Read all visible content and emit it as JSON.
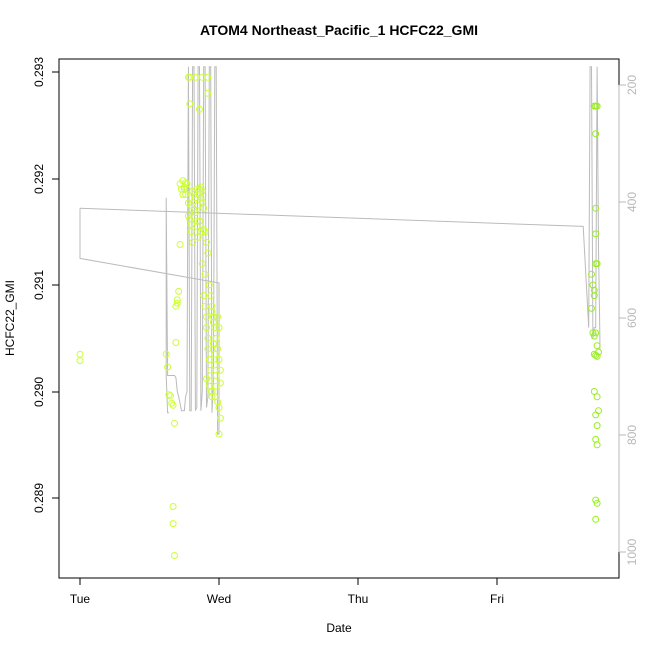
{
  "chart_data": {
    "type": "scatter",
    "title": "ATOM4 Northeast_Pacific_1 HCFC22_GMI",
    "xlabel": "Date",
    "ylabel": "HCFC22_GMI",
    "x_axis": {
      "range_days": [
        -0.02,
        3.8
      ],
      "ticks": [
        {
          "pos": 0,
          "label": "Tue"
        },
        {
          "pos": 1,
          "label": "Wed"
        },
        {
          "pos": 2,
          "label": "Thu"
        },
        {
          "pos": 3,
          "label": "Fri"
        }
      ]
    },
    "y_axis": {
      "ylim": [
        0.28843,
        0.29305
      ],
      "ticks": [
        "0.289",
        "0.290",
        "0.291",
        "0.292",
        "0.293"
      ]
    },
    "y2_axis": {
      "note": "pressure axis (reversed)",
      "ylim": [
        1030,
        175
      ],
      "ticks": [
        "200",
        "400",
        "600",
        "800",
        "1000"
      ],
      "color": "#b8b8b8"
    },
    "colors": {
      "points_early": "#ccff33",
      "points_late": "#99ee22",
      "line": "#bbbbbb"
    },
    "series": [
      {
        "kind": "points",
        "color": "#ccff33",
        "points": [
          [
            0.0,
            0.29035
          ],
          [
            0.0,
            0.29029
          ],
          [
            0.62,
            0.29035
          ],
          [
            0.63,
            0.29023
          ],
          [
            0.64,
            0.28997
          ],
          [
            0.65,
            0.28996
          ],
          [
            0.66,
            0.28989
          ],
          [
            0.67,
            0.28987
          ],
          [
            0.68,
            0.2897
          ],
          [
            0.69,
            0.29046
          ],
          [
            0.67,
            0.28892
          ],
          [
            0.67,
            0.28876
          ],
          [
            0.68,
            0.28846
          ],
          [
            0.69,
            0.2908
          ],
          [
            0.7,
            0.29083
          ],
          [
            0.7,
            0.29086
          ],
          [
            0.71,
            0.29094
          ],
          [
            0.72,
            0.29138
          ],
          [
            0.72,
            0.29195
          ],
          [
            0.73,
            0.2919
          ],
          [
            0.74,
            0.29198
          ],
          [
            0.75,
            0.29192
          ],
          [
            0.76,
            0.29196
          ],
          [
            0.77,
            0.2919
          ],
          [
            0.78,
            0.29177
          ],
          [
            0.78,
            0.29165
          ],
          [
            0.79,
            0.29162
          ],
          [
            0.8,
            0.29157
          ],
          [
            0.8,
            0.2915
          ],
          [
            0.81,
            0.2914
          ],
          [
            0.81,
            0.29188
          ],
          [
            0.82,
            0.29185
          ],
          [
            0.83,
            0.29182
          ],
          [
            0.83,
            0.29168
          ],
          [
            0.84,
            0.2916
          ],
          [
            0.84,
            0.29155
          ],
          [
            0.85,
            0.29175
          ],
          [
            0.85,
            0.29145
          ],
          [
            0.86,
            0.2919
          ],
          [
            0.86,
            0.2916
          ],
          [
            0.87,
            0.29192
          ],
          [
            0.87,
            0.2915
          ],
          [
            0.88,
            0.29188
          ],
          [
            0.88,
            0.2912
          ],
          [
            0.89,
            0.29152
          ],
          [
            0.89,
            0.2909
          ],
          [
            0.9,
            0.2911
          ],
          [
            0.9,
            0.2908
          ],
          [
            0.91,
            0.2906
          ],
          [
            0.91,
            0.2907
          ],
          [
            0.92,
            0.2905
          ],
          [
            0.92,
            0.2904
          ],
          [
            0.93,
            0.2903
          ],
          [
            0.93,
            0.2901
          ],
          [
            0.94,
            0.29
          ],
          [
            0.94,
            0.2902
          ],
          [
            0.95,
            0.28995
          ],
          [
            0.95,
            0.29075
          ],
          [
            0.96,
            0.29065
          ],
          [
            0.96,
            0.29045
          ],
          [
            0.97,
            0.29035
          ],
          [
            0.97,
            0.29025
          ],
          [
            0.98,
            0.29015
          ],
          [
            0.98,
            0.29005
          ],
          [
            0.99,
            0.2899
          ],
          [
            0.99,
            0.2907
          ],
          [
            1.0,
            0.2906
          ],
          [
            1.0,
            0.28985
          ],
          [
            1.0,
            0.2896
          ],
          [
            1.01,
            0.2902
          ],
          [
            1.01,
            0.29008
          ],
          [
            1.01,
            0.28975
          ],
          [
            0.78,
            0.29295
          ],
          [
            0.79,
            0.29295
          ],
          [
            0.83,
            0.29295
          ],
          [
            0.88,
            0.29295
          ],
          [
            0.92,
            0.29295
          ],
          [
            0.92,
            0.2928
          ],
          [
            0.79,
            0.2927
          ],
          [
            0.86,
            0.29265
          ],
          [
            0.75,
            0.2919
          ],
          [
            0.76,
            0.29185
          ],
          [
            0.77,
            0.29195
          ],
          [
            0.74,
            0.29185
          ],
          [
            0.8,
            0.29175
          ],
          [
            0.82,
            0.2917
          ],
          [
            0.84,
            0.2919
          ],
          [
            0.86,
            0.29185
          ],
          [
            0.87,
            0.29182
          ],
          [
            0.88,
            0.29178
          ],
          [
            0.89,
            0.29172
          ],
          [
            0.9,
            0.2915
          ],
          [
            0.91,
            0.2914
          ],
          [
            0.92,
            0.2913
          ],
          [
            0.93,
            0.291
          ],
          [
            0.94,
            0.2909
          ],
          [
            0.95,
            0.2908
          ],
          [
            0.96,
            0.2907
          ],
          [
            0.97,
            0.2906
          ],
          [
            0.98,
            0.2905
          ],
          [
            0.99,
            0.2904
          ],
          [
            1.0,
            0.2903
          ],
          [
            0.91,
            0.29012
          ],
          [
            0.93,
            0.29005
          ],
          [
            0.95,
            0.29
          ],
          [
            0.97,
            0.28995
          ]
        ]
      },
      {
        "kind": "points",
        "color": "#99ee22",
        "points": [
          [
            3.68,
            0.2911
          ],
          [
            3.69,
            0.291
          ],
          [
            3.7,
            0.2909
          ],
          [
            3.68,
            0.29078
          ],
          [
            3.69,
            0.29055
          ],
          [
            3.7,
            0.29052
          ],
          [
            3.71,
            0.2912
          ],
          [
            3.72,
            0.29043
          ],
          [
            3.7,
            0.29035
          ],
          [
            3.71,
            0.29034
          ],
          [
            3.72,
            0.29033
          ],
          [
            3.73,
            0.29037
          ],
          [
            3.7,
            0.29
          ],
          [
            3.72,
            0.28995
          ],
          [
            3.73,
            0.28982
          ],
          [
            3.71,
            0.28978
          ],
          [
            3.72,
            0.28968
          ],
          [
            3.71,
            0.28955
          ],
          [
            3.72,
            0.2895
          ],
          [
            3.71,
            0.28898
          ],
          [
            3.72,
            0.28895
          ],
          [
            3.71,
            0.2888
          ],
          [
            3.72,
            0.29268
          ],
          [
            3.71,
            0.29268
          ],
          [
            3.7,
            0.29268
          ],
          [
            3.71,
            0.29242
          ],
          [
            3.71,
            0.29172
          ],
          [
            3.71,
            0.29148
          ],
          [
            3.72,
            0.2912
          ],
          [
            3.7,
            0.29095
          ],
          [
            3.71,
            0.29055
          ]
        ]
      },
      {
        "kind": "line",
        "color": "#bbbbbb",
        "points": [
          [
            0.0,
            0.29172
          ],
          [
            3.62,
            0.29155
          ],
          [
            3.66,
            0.2906
          ],
          [
            3.67,
            0.29305
          ],
          [
            3.68,
            0.29305
          ],
          [
            3.69,
            0.2905
          ],
          [
            3.7,
            0.2906
          ],
          [
            3.71,
            0.2906
          ],
          [
            3.72,
            0.29305
          ],
          [
            3.73,
            0.29135
          ],
          [
            3.74,
            0.2905
          ],
          [
            3.74,
            0.2904
          ]
        ]
      },
      {
        "kind": "line",
        "color": "#bbbbbb",
        "points": [
          [
            0.0,
            0.29172
          ],
          [
            0.0,
            0.29125
          ],
          [
            1.0,
            0.29102
          ],
          [
            1.0,
            0.2896
          ],
          [
            0.99,
            0.2896
          ],
          [
            0.98,
            0.29305
          ],
          [
            0.97,
            0.29305
          ],
          [
            0.96,
            0.2901
          ],
          [
            0.95,
            0.2898
          ],
          [
            0.94,
            0.29305
          ],
          [
            0.93,
            0.29305
          ],
          [
            0.92,
            0.28995
          ],
          [
            0.91,
            0.28985
          ],
          [
            0.9,
            0.29305
          ],
          [
            0.89,
            0.29305
          ],
          [
            0.88,
            0.29
          ],
          [
            0.87,
            0.28982
          ],
          [
            0.86,
            0.29305
          ],
          [
            0.85,
            0.29305
          ],
          [
            0.84,
            0.28985
          ],
          [
            0.83,
            0.28982
          ],
          [
            0.82,
            0.29305
          ],
          [
            0.81,
            0.29305
          ],
          [
            0.8,
            0.28982
          ],
          [
            0.79,
            0.28982
          ],
          [
            0.78,
            0.29305
          ],
          [
            0.77,
            0.29
          ],
          [
            0.76,
            0.28995
          ],
          [
            0.75,
            0.28982
          ],
          [
            0.73,
            0.28982
          ],
          [
            0.71,
            0.28995
          ],
          [
            0.7,
            0.29
          ],
          [
            0.69,
            0.29013
          ],
          [
            0.68,
            0.29015
          ],
          [
            0.67,
            0.29015
          ],
          [
            0.66,
            0.29015
          ],
          [
            0.65,
            0.29015
          ],
          [
            0.64,
            0.29015
          ],
          [
            0.63,
            0.29015
          ],
          [
            0.62,
            0.29182
          ],
          [
            0.62,
            0.29015
          ],
          [
            0.63,
            0.2898
          ],
          [
            0.64,
            0.2898
          ]
        ]
      }
    ]
  }
}
